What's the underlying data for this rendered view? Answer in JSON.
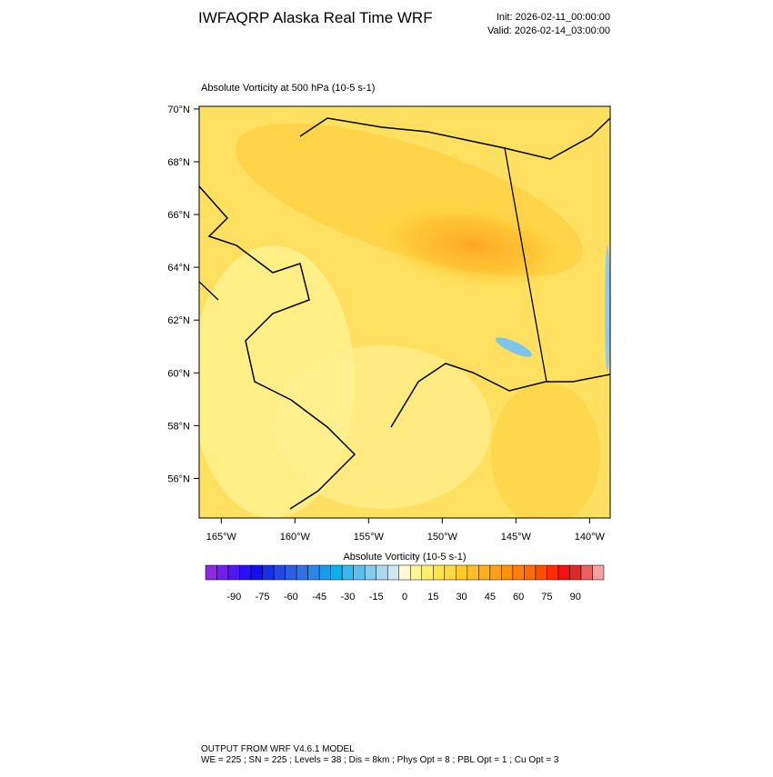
{
  "header": {
    "title": "IWFAQRP Alaska Real Time WRF",
    "init": "Init: 2026-02-11_00:00:00",
    "valid": "Valid: 2026-02-14_03:00:00"
  },
  "map": {
    "subtitle": "Absolute Vorticity at 500 hPa   (10-5 s-1)",
    "ylim": [
      54.5,
      70.1
    ],
    "yticks": [
      {
        "value": 70,
        "label": "70°N"
      },
      {
        "value": 68,
        "label": "68°N"
      },
      {
        "value": 66,
        "label": "66°N"
      },
      {
        "value": 64,
        "label": "64°N"
      },
      {
        "value": 62,
        "label": "62°N"
      },
      {
        "value": 60,
        "label": "60°N"
      },
      {
        "value": 58,
        "label": "58°N"
      },
      {
        "value": 56,
        "label": "56°N"
      }
    ],
    "xlim": [
      -166.5,
      -138.6
    ],
    "xticks": [
      {
        "value": -165,
        "label": "165°W"
      },
      {
        "value": -160,
        "label": "160°W"
      },
      {
        "value": -155,
        "label": "155°W"
      },
      {
        "value": -150,
        "label": "150°W"
      },
      {
        "value": -145,
        "label": "145°W"
      },
      {
        "value": -140,
        "label": "140°W"
      }
    ]
  },
  "colorbar": {
    "title": "Absolute Vorticity  (10-5 s-1)",
    "lim": [
      -105,
      105
    ],
    "ticks": [
      -90,
      -75,
      -60,
      -45,
      -30,
      -15,
      0,
      15,
      30,
      45,
      60,
      75,
      90
    ],
    "colors": [
      "#8a2be2",
      "#7020e8",
      "#5018f0",
      "#2a10f5",
      "#1010f0",
      "#1a30e8",
      "#2448e0",
      "#2c5ee0",
      "#2e72e6",
      "#2a86ea",
      "#1a9cea",
      "#0eb0ec",
      "#38b8ee",
      "#60bfea",
      "#88cceb",
      "#aed8ee",
      "#cce6f2",
      "#fffbd0",
      "#fff59a",
      "#ffee70",
      "#ffe450",
      "#ffda40",
      "#ffcc30",
      "#ffbe28",
      "#ffae20",
      "#ffa018",
      "#ff9010",
      "#ff8008",
      "#ff6c00",
      "#ff5000",
      "#ff2c00",
      "#f51010",
      "#e02828",
      "#e86060",
      "#f4a0a0"
    ]
  },
  "footer": {
    "line1": "OUTPUT FROM WRF V4.6.1 MODEL",
    "line2": "WE = 225 ; SN = 225 ; Levels = 38 ; Dis = 8km ; Phys Opt = 8 ; PBL Opt = 1 ; Cu Opt = 3"
  }
}
